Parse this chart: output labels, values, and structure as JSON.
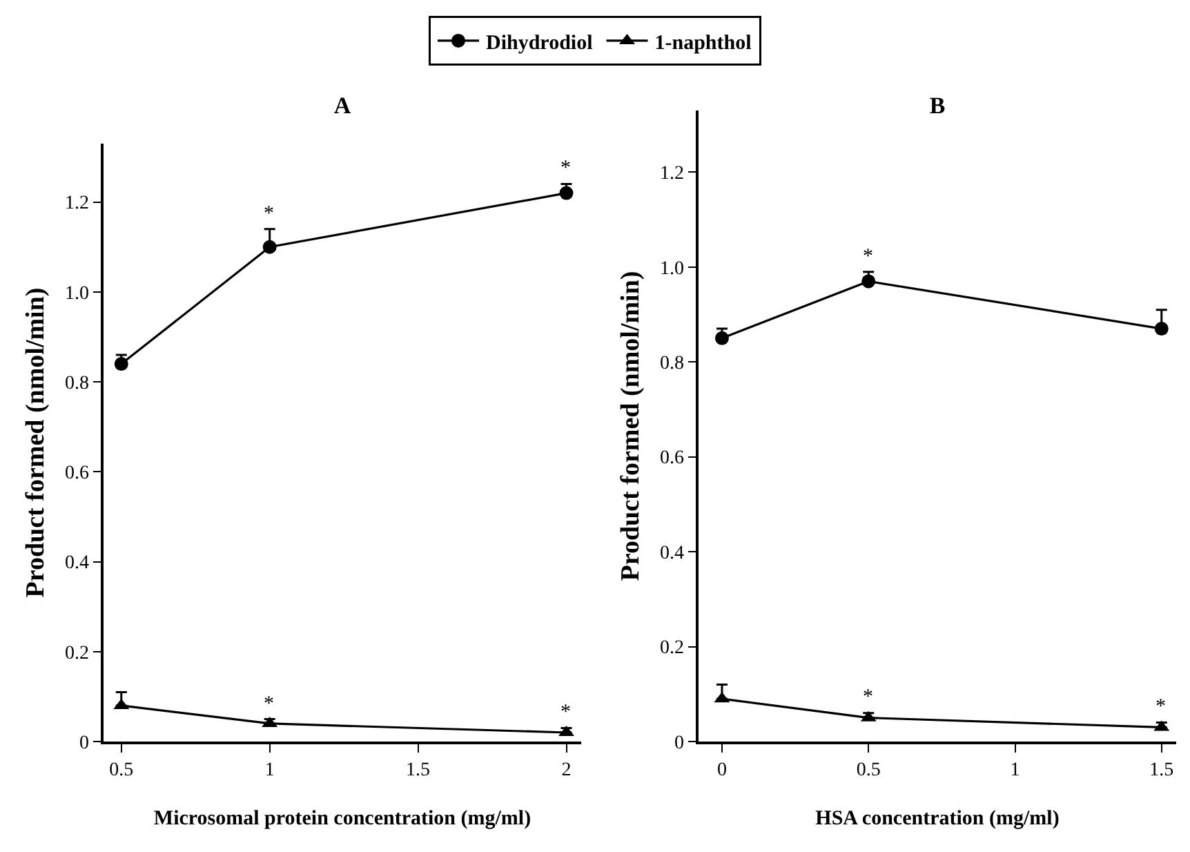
{
  "chart_data": [
    {
      "type": "line",
      "title": "A",
      "xlabel": "Microsomal protein concentration (mg/ml)",
      "ylabel": "Product formed (nmol/min)",
      "x": [
        0.5,
        1,
        2
      ],
      "xlim": [
        0.44,
        2.05
      ],
      "xticks": [
        0.5,
        1,
        1.5,
        2
      ],
      "ylim": [
        0,
        1.33
      ],
      "yticks": [
        0,
        0.2,
        0.4,
        0.6,
        0.8,
        {
          "value": 1,
          "label": "1.0"
        },
        1.2
      ],
      "series": [
        {
          "name": "Dihydrodiol",
          "color": "#000000",
          "marker": "circle",
          "values": [
            0.84,
            1.1,
            1.22
          ],
          "errors": [
            [
              0.84,
              0.86
            ],
            [
              1.1,
              1.14
            ],
            [
              1.22,
              1.24
            ]
          ]
        },
        {
          "name": "1-naphthol",
          "color": "#000000",
          "marker": "triangle",
          "values": [
            0.08,
            0.04,
            0.02
          ],
          "errors": [
            [
              0.08,
              0.11
            ],
            [
              0.04,
              0.05
            ],
            [
              0.02,
              0.03
            ]
          ]
        }
      ],
      "annotations": [
        {
          "text": "*",
          "x": 1,
          "y": 1.14
        },
        {
          "text": "*",
          "x": 2,
          "y": 1.24
        },
        {
          "text": "*",
          "x": 1,
          "y": 0.05
        },
        {
          "text": "*",
          "x": 2,
          "y": 0.03
        }
      ],
      "legend": "top",
      "grid": false,
      "line_style": "solid"
    },
    {
      "type": "line",
      "title": "B",
      "xlabel": "HSA concentration (mg/ml)",
      "ylabel": "Product formed (nmol/min)",
      "x": [
        0,
        0.5,
        1.5
      ],
      "xlim": [
        -0.08,
        1.55
      ],
      "xticks": [
        0,
        0.5,
        1,
        1.5
      ],
      "ylim": [
        0,
        1.33
      ],
      "yticks": [
        0,
        0.2,
        0.4,
        0.6,
        0.8,
        {
          "value": 1,
          "label": "1.0"
        },
        1.2
      ],
      "series": [
        {
          "color": "#000000",
          "marker": "circle",
          "values": [
            0.85,
            0.97,
            0.87
          ],
          "errors": [
            [
              0.85,
              0.87
            ],
            [
              0.97,
              0.99
            ],
            [
              0.87,
              0.91
            ]
          ]
        },
        {
          "color": "#000000",
          "marker": "triangle",
          "values": [
            0.09,
            0.05,
            0.03
          ],
          "errors": [
            [
              0.09,
              0.12
            ],
            [
              0.05,
              0.06
            ],
            [
              0.03,
              0.04
            ]
          ]
        }
      ],
      "annotations": [
        {
          "text": "*",
          "x": 0.5,
          "y": 0.99
        },
        {
          "text": "*",
          "x": 0.5,
          "y": 0.06
        },
        {
          "text": "*",
          "x": 1.5,
          "y": 0.04
        }
      ],
      "legend": false,
      "grid": false,
      "line_style": "solid"
    }
  ]
}
